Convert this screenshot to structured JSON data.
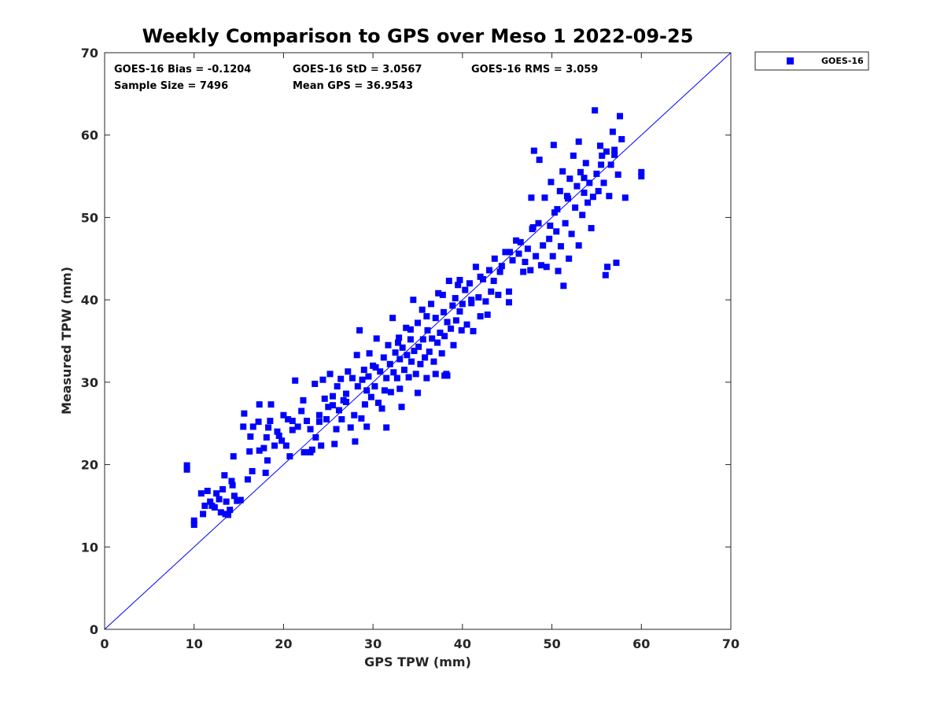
{
  "chart_data": {
    "type": "scatter",
    "title": "Weekly Comparison to GPS over Meso 1 2022-09-25",
    "xlabel": "GPS TPW (mm)",
    "ylabel": "Measured TPW (mm)",
    "xlim": [
      0,
      70
    ],
    "ylim": [
      0,
      70
    ],
    "xticks": [
      "0",
      "10",
      "20",
      "30",
      "40",
      "50",
      "60",
      "70"
    ],
    "yticks": [
      "0",
      "10",
      "20",
      "30",
      "40",
      "50",
      "60",
      "70"
    ],
    "grid": false,
    "legend_placement": "outside-top-right",
    "reference_line": {
      "x": [
        0,
        70
      ],
      "y": [
        0,
        70
      ]
    },
    "color": "#0000ff",
    "stats": {
      "bias": "GOES-16 Bias = -0.1204",
      "std": "GOES-16 StD = 3.0567",
      "rms": "GOES-16 RMS = 3.059",
      "sample_size": "Sample Size = 7496",
      "mean_gps": "Mean GPS = 36.9543"
    },
    "series": [
      {
        "name": "GOES-16",
        "marker": "square",
        "points": [
          [
            9.2,
            19.4
          ],
          [
            9.2,
            19.9
          ],
          [
            10.0,
            12.7
          ],
          [
            10.0,
            13.2
          ],
          [
            10.8,
            16.5
          ],
          [
            11.0,
            14.0
          ],
          [
            11.2,
            15.0
          ],
          [
            11.5,
            16.8
          ],
          [
            11.8,
            15.5
          ],
          [
            12.0,
            15.0
          ],
          [
            12.3,
            14.8
          ],
          [
            12.5,
            16.5
          ],
          [
            12.8,
            15.8
          ],
          [
            13.0,
            14.2
          ],
          [
            13.2,
            17.0
          ],
          [
            13.4,
            18.7
          ],
          [
            13.5,
            14.0
          ],
          [
            13.6,
            15.5
          ],
          [
            13.8,
            13.9
          ],
          [
            14.0,
            14.5
          ],
          [
            14.2,
            18.0
          ],
          [
            14.3,
            17.5
          ],
          [
            14.4,
            21.0
          ],
          [
            14.5,
            16.2
          ],
          [
            14.8,
            15.6
          ],
          [
            15.2,
            15.7
          ],
          [
            15.5,
            24.6
          ],
          [
            15.6,
            26.2
          ],
          [
            16.0,
            18.2
          ],
          [
            16.2,
            21.6
          ],
          [
            16.3,
            23.4
          ],
          [
            16.5,
            19.2
          ],
          [
            16.6,
            24.6
          ],
          [
            17.2,
            25.2
          ],
          [
            17.3,
            21.7
          ],
          [
            17.3,
            27.3
          ],
          [
            17.8,
            22.0
          ],
          [
            18.0,
            19.0
          ],
          [
            18.1,
            23.3
          ],
          [
            18.2,
            20.5
          ],
          [
            18.3,
            24.5
          ],
          [
            18.5,
            25.3
          ],
          [
            18.6,
            27.3
          ],
          [
            19.0,
            22.3
          ],
          [
            19.3,
            24.0
          ],
          [
            19.5,
            23.5
          ],
          [
            19.8,
            22.9
          ],
          [
            20.0,
            26.0
          ],
          [
            20.3,
            22.3
          ],
          [
            20.5,
            25.5
          ],
          [
            20.7,
            21.0
          ],
          [
            21.0,
            24.2
          ],
          [
            21.3,
            30.2
          ],
          [
            21.6,
            24.6
          ],
          [
            22.0,
            26.5
          ],
          [
            22.2,
            27.8
          ],
          [
            22.3,
            21.5
          ],
          [
            22.6,
            25.3
          ],
          [
            23.0,
            24.3
          ],
          [
            23.2,
            21.8
          ],
          [
            23.5,
            29.8
          ],
          [
            23.6,
            23.3
          ],
          [
            24.0,
            26.0
          ],
          [
            24.2,
            22.3
          ],
          [
            24.4,
            30.3
          ],
          [
            24.6,
            28.0
          ],
          [
            24.8,
            25.5
          ],
          [
            25.0,
            27.0
          ],
          [
            25.2,
            31.0
          ],
          [
            25.5,
            28.3
          ],
          [
            25.7,
            22.5
          ],
          [
            25.9,
            24.3
          ],
          [
            26.0,
            29.5
          ],
          [
            26.2,
            26.6
          ],
          [
            26.5,
            25.5
          ],
          [
            26.7,
            27.8
          ],
          [
            27.0,
            28.6
          ],
          [
            27.2,
            31.3
          ],
          [
            27.5,
            24.5
          ],
          [
            27.7,
            30.5
          ],
          [
            27.9,
            26.0
          ],
          [
            28.0,
            22.8
          ],
          [
            28.2,
            33.3
          ],
          [
            28.3,
            29.5
          ],
          [
            28.5,
            36.3
          ],
          [
            28.7,
            25.6
          ],
          [
            29.0,
            31.5
          ],
          [
            29.1,
            27.3
          ],
          [
            29.3,
            29.0
          ],
          [
            29.5,
            30.7
          ],
          [
            29.6,
            33.5
          ],
          [
            29.8,
            28.2
          ],
          [
            30.0,
            32.0
          ],
          [
            30.2,
            29.5
          ],
          [
            30.4,
            35.3
          ],
          [
            30.6,
            27.5
          ],
          [
            30.8,
            31.3
          ],
          [
            31.0,
            26.8
          ],
          [
            31.2,
            33.0
          ],
          [
            31.3,
            29.0
          ],
          [
            31.5,
            30.5
          ],
          [
            31.7,
            34.5
          ],
          [
            31.9,
            32.2
          ],
          [
            32.0,
            28.8
          ],
          [
            32.2,
            37.8
          ],
          [
            32.3,
            31.2
          ],
          [
            32.5,
            33.6
          ],
          [
            32.7,
            30.5
          ],
          [
            32.9,
            35.4
          ],
          [
            33.0,
            32.8
          ],
          [
            33.2,
            27.0
          ],
          [
            33.3,
            34.2
          ],
          [
            33.5,
            31.5
          ],
          [
            33.7,
            36.6
          ],
          [
            33.8,
            33.3
          ],
          [
            34.0,
            30.6
          ],
          [
            34.2,
            35.2
          ],
          [
            34.3,
            32.5
          ],
          [
            34.5,
            40.0
          ],
          [
            34.6,
            33.8
          ],
          [
            34.8,
            31.0
          ],
          [
            35.0,
            37.2
          ],
          [
            35.1,
            34.3
          ],
          [
            35.3,
            32.2
          ],
          [
            35.5,
            38.8
          ],
          [
            35.6,
            35.2
          ],
          [
            35.8,
            33.0
          ],
          [
            36.0,
            30.5
          ],
          [
            36.1,
            36.3
          ],
          [
            36.3,
            33.7
          ],
          [
            36.5,
            39.5
          ],
          [
            36.6,
            35.3
          ],
          [
            36.8,
            32.5
          ],
          [
            37.0,
            37.8
          ],
          [
            37.2,
            34.8
          ],
          [
            37.3,
            40.8
          ],
          [
            37.5,
            36.0
          ],
          [
            37.7,
            33.5
          ],
          [
            37.9,
            38.5
          ],
          [
            38.0,
            35.6
          ],
          [
            38.2,
            31.0
          ],
          [
            38.3,
            37.3
          ],
          [
            38.5,
            42.3
          ],
          [
            38.7,
            36.5
          ],
          [
            38.9,
            39.3
          ],
          [
            39.0,
            34.5
          ],
          [
            39.2,
            40.2
          ],
          [
            39.3,
            37.5
          ],
          [
            39.5,
            41.8
          ],
          [
            39.7,
            38.6
          ],
          [
            39.9,
            36.3
          ],
          [
            40.0,
            39.5
          ],
          [
            40.3,
            41.2
          ],
          [
            40.5,
            37.0
          ],
          [
            40.8,
            42.0
          ],
          [
            41.0,
            39.6
          ],
          [
            41.2,
            36.2
          ],
          [
            41.5,
            44.0
          ],
          [
            41.8,
            40.3
          ],
          [
            42.0,
            38.0
          ],
          [
            42.3,
            42.5
          ],
          [
            42.6,
            39.8
          ],
          [
            43.0,
            43.6
          ],
          [
            43.2,
            41.0
          ],
          [
            43.6,
            45.0
          ],
          [
            44.0,
            40.6
          ],
          [
            44.4,
            44.1
          ],
          [
            45.2,
            39.7
          ],
          [
            45.3,
            45.8
          ],
          [
            45.6,
            44.8
          ],
          [
            46.0,
            47.2
          ],
          [
            46.3,
            45.6
          ],
          [
            46.8,
            43.4
          ],
          [
            47.0,
            44.6
          ],
          [
            47.3,
            46.2
          ],
          [
            47.6,
            43.6
          ],
          [
            47.9,
            48.8
          ],
          [
            48.2,
            45.3
          ],
          [
            48.5,
            49.3
          ],
          [
            48.8,
            44.2
          ],
          [
            49.0,
            46.6
          ],
          [
            49.2,
            52.4
          ],
          [
            49.4,
            44.0
          ],
          [
            49.7,
            47.4
          ],
          [
            49.9,
            54.3
          ],
          [
            50.1,
            45.3
          ],
          [
            50.3,
            50.6
          ],
          [
            50.5,
            48.3
          ],
          [
            50.7,
            43.5
          ],
          [
            50.9,
            53.2
          ],
          [
            51.0,
            46.5
          ],
          [
            51.2,
            55.6
          ],
          [
            51.3,
            41.7
          ],
          [
            51.5,
            49.3
          ],
          [
            51.7,
            52.6
          ],
          [
            51.9,
            45.0
          ],
          [
            52.0,
            54.7
          ],
          [
            52.2,
            48.0
          ],
          [
            52.4,
            57.5
          ],
          [
            52.6,
            51.2
          ],
          [
            52.8,
            53.8
          ],
          [
            53.0,
            46.6
          ],
          [
            53.2,
            55.5
          ],
          [
            53.4,
            50.3
          ],
          [
            53.6,
            53.0
          ],
          [
            53.8,
            56.6
          ],
          [
            54.0,
            51.8
          ],
          [
            54.2,
            54.2
          ],
          [
            54.4,
            48.7
          ],
          [
            54.6,
            52.5
          ],
          [
            54.8,
            63.0
          ],
          [
            55.0,
            55.3
          ],
          [
            55.2,
            53.2
          ],
          [
            55.4,
            58.7
          ],
          [
            55.6,
            57.5
          ],
          [
            55.8,
            54.2
          ],
          [
            56.0,
            43.0
          ],
          [
            56.2,
            44.0
          ],
          [
            56.4,
            52.6
          ],
          [
            56.6,
            56.4
          ],
          [
            56.8,
            60.4
          ],
          [
            57.0,
            58.2
          ],
          [
            57.2,
            44.5
          ],
          [
            57.4,
            55.2
          ],
          [
            57.6,
            62.3
          ],
          [
            57.8,
            59.5
          ],
          [
            58.2,
            52.4
          ],
          [
            60.0,
            55.0
          ],
          [
            60.0,
            55.5
          ],
          [
            49.8,
            49.0
          ],
          [
            50.2,
            58.8
          ],
          [
            48.0,
            58.1
          ],
          [
            48.6,
            57.0
          ],
          [
            47.7,
            52.4
          ],
          [
            53.0,
            59.2
          ],
          [
            56.1,
            58.0
          ],
          [
            57.0,
            57.6
          ],
          [
            45.2,
            41.0
          ],
          [
            42.8,
            38.2
          ],
          [
            44.2,
            43.4
          ],
          [
            31.5,
            24.5
          ],
          [
            33.0,
            29.2
          ],
          [
            35.0,
            28.7
          ],
          [
            38.0,
            30.8
          ],
          [
            37.0,
            31.0
          ],
          [
            38.3,
            30.8
          ],
          [
            29.3,
            24.6
          ],
          [
            26.4,
            30.4
          ],
          [
            23.0,
            21.5
          ],
          [
            21.0,
            25.3
          ],
          [
            24.0,
            25.2
          ],
          [
            25.5,
            27.2
          ],
          [
            27.0,
            27.6
          ],
          [
            28.8,
            30.3
          ],
          [
            30.3,
            31.8
          ],
          [
            32.8,
            34.8
          ],
          [
            34.2,
            36.4
          ],
          [
            36.0,
            38.0
          ],
          [
            37.8,
            40.6
          ],
          [
            39.7,
            42.4
          ],
          [
            41.0,
            40.0
          ],
          [
            42.0,
            42.8
          ],
          [
            43.5,
            42.3
          ],
          [
            44.8,
            45.8
          ],
          [
            46.5,
            47.0
          ],
          [
            47.8,
            48.6
          ],
          [
            50.6,
            51.0
          ],
          [
            51.8,
            52.3
          ],
          [
            53.6,
            54.8
          ],
          [
            55.5,
            56.4
          ]
        ]
      }
    ]
  }
}
